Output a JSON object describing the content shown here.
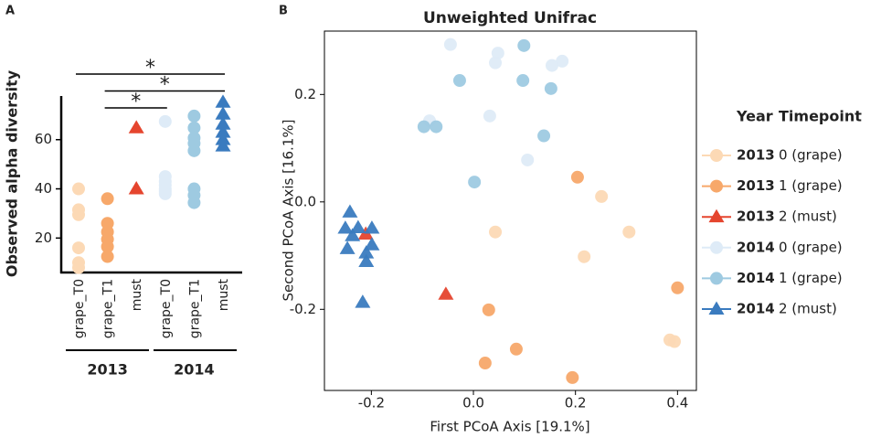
{
  "chart_data": [
    {
      "type": "strip",
      "panel": "A",
      "ylabel": "Observed alpha diversity",
      "categories": [
        "grape_T0",
        "grape_T1",
        "must",
        "grape_T0",
        "grape_T1",
        "must"
      ],
      "groups": [
        "2013",
        "2014"
      ],
      "colors": [
        "#fcd9b5",
        "#f7a86a",
        "#e5452e",
        "#deebf7",
        "#9ecae1",
        "#3a7bbf"
      ],
      "markers": [
        "circle",
        "circle",
        "triangle",
        "circle",
        "circle",
        "triangle"
      ],
      "values": [
        [
          40,
          31.5,
          29.5,
          16,
          10,
          8
        ],
        [
          36,
          26,
          22.5,
          19.5,
          16.5,
          12.5
        ],
        [
          64.8,
          40
        ],
        [
          67.4,
          45,
          43,
          41.5,
          40,
          39,
          38
        ],
        [
          69.6,
          64.8,
          60.7,
          58.5,
          55.5,
          40,
          37.4,
          34.4
        ],
        [
          75.2,
          70.4,
          66.3,
          63,
          60,
          57.4
        ]
      ],
      "ylim": [
        6,
        77
      ],
      "yticks": [
        20,
        40,
        60
      ],
      "significance": [
        {
          "label": "*",
          "groups": [
            0,
            5
          ]
        },
        {
          "label": "*",
          "groups": [
            1,
            5
          ]
        },
        {
          "label": "*",
          "groups": [
            1,
            3
          ]
        }
      ]
    },
    {
      "type": "scatter",
      "panel": "B",
      "title": "Unweighted Unifrac",
      "xlabel": "First PCoA Axis [19.1%]",
      "ylabel": "Second PCoA Axis [16.1%]",
      "legend_headers": [
        "Year",
        "Timepoint"
      ],
      "legend": "right",
      "xlim": [
        -0.292,
        0.437
      ],
      "ylim": [
        -0.351,
        0.318
      ],
      "xticks": [
        -0.2,
        {
          "value": 0,
          "label": "0.0"
        },
        0.2,
        0.4
      ],
      "yticks": [
        -0.2,
        {
          "value": 0,
          "label": "0.0"
        },
        0.2
      ],
      "series": [
        {
          "year": "2013",
          "name": "0 (grape)",
          "color": "#fcd9b5",
          "marker": "circle",
          "x": [
            0.043,
            0.251,
            0.305,
            0.217,
            0.385,
            0.394
          ],
          "y": [
            -0.056,
            0.01,
            -0.056,
            -0.102,
            -0.257,
            -0.26
          ]
        },
        {
          "year": "2013",
          "name": "1 (grape)",
          "color": "#f7a86a",
          "marker": "circle",
          "x": [
            0.204,
            0.4,
            0.03,
            0.084,
            0.023,
            0.194
          ],
          "y": [
            0.046,
            -0.16,
            -0.201,
            -0.274,
            -0.3,
            -0.327
          ]
        },
        {
          "year": "2013",
          "name": "2 (must)",
          "color": "#e5452e",
          "marker": "triangle",
          "x": [
            -0.054,
            -0.211
          ],
          "y": [
            -0.172,
            -0.06
          ]
        },
        {
          "year": "2014",
          "name": "0 (grape)",
          "color": "#deebf7",
          "marker": "circle",
          "x": [
            -0.045,
            0.048,
            0.043,
            0.174,
            0.154,
            -0.086,
            0.032,
            0.106
          ],
          "y": [
            0.293,
            0.277,
            0.259,
            0.262,
            0.254,
            0.151,
            0.16,
            0.078
          ]
        },
        {
          "year": "2014",
          "name": "1 (grape)",
          "color": "#9ecae1",
          "marker": "circle",
          "x": [
            0.099,
            -0.027,
            0.097,
            0.152,
            -0.097,
            -0.073,
            0.138,
            0.002
          ],
          "y": [
            0.291,
            0.226,
            0.226,
            0.211,
            0.14,
            0.14,
            0.123,
            0.037
          ]
        },
        {
          "year": "2014",
          "name": "2 (must)",
          "color": "#3a7bbf",
          "marker": "triangle",
          "x": [
            -0.242,
            -0.251,
            -0.226,
            -0.237,
            -0.199,
            -0.199,
            -0.247,
            -0.21,
            -0.21,
            -0.217
          ],
          "y": [
            -0.019,
            -0.049,
            -0.048,
            -0.063,
            -0.049,
            -0.08,
            -0.087,
            -0.095,
            -0.111,
            -0.187
          ]
        }
      ]
    }
  ]
}
